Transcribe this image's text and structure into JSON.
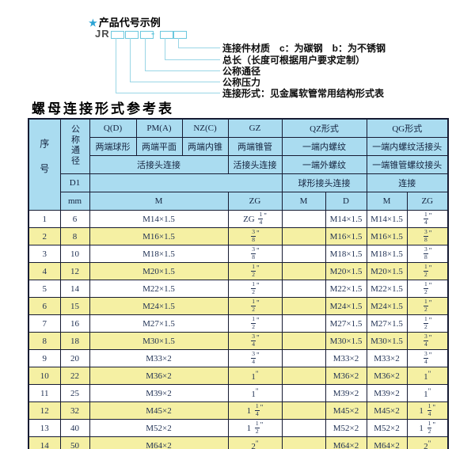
{
  "diagram": {
    "star": "★",
    "title": "产品代号示例",
    "code_prefix": "JR",
    "separator": "-",
    "callouts": [
      "连接件材质　c：为碳钢　b：为不锈钢",
      "总长（长度可根据用户要求定制）",
      "公称通径",
      "公称压力",
      "连接形式：见金属软管常用结构形式表"
    ]
  },
  "table": {
    "title": "螺母连接形式参考表",
    "header": {
      "seq": "序号",
      "dn": "公称通径",
      "d1": "D1",
      "mm": "mm",
      "col_qd": "Q(D)",
      "col_pm": "PM(A)",
      "col_nz": "NZ(C)",
      "col_gz": "GZ",
      "col_qz": "QZ形式",
      "col_qg": "QG形式",
      "qd_desc": "两端球形",
      "pm_desc": "两端平面",
      "nz_desc": "两端内锥",
      "gz_desc": "两端锥管",
      "qz_desc1": "一端内螺纹",
      "qg_desc1": "一端内螺纹活接头",
      "left_conn": "活接头连接",
      "gz_conn": "活接头连接",
      "qz_desc2": "一端外螺纹",
      "qg_desc2": "一端锥管螺纹接头",
      "qz_conn": "球形接头连接",
      "qg_conn": "连接",
      "m_label": "M",
      "zg_label": "ZG",
      "qz_m_label": "M",
      "qz_d_label": "D",
      "qg_m_label": "M",
      "qg_zg_label": "ZG"
    },
    "rows": [
      {
        "seq": "1",
        "dn": "6",
        "m": "M14×1.5",
        "gz": "ZG 1/4\"",
        "qz_m": "",
        "qz_d": "M14×1.5",
        "qg_m": "M14×1.5",
        "qg_zg": "1/4\""
      },
      {
        "seq": "2",
        "dn": "8",
        "m": "M16×1.5",
        "gz": "3/8\"",
        "qz_m": "",
        "qz_d": "M16×1.5",
        "qg_m": "M16×1.5",
        "qg_zg": "3/8\""
      },
      {
        "seq": "3",
        "dn": "10",
        "m": "M18×1.5",
        "gz": "3/8\"",
        "qz_m": "",
        "qz_d": "M18×1.5",
        "qg_m": "M18×1.5",
        "qg_zg": "3/8\""
      },
      {
        "seq": "4",
        "dn": "12",
        "m": "M20×1.5",
        "gz": "1/2\"",
        "qz_m": "",
        "qz_d": "M20×1.5",
        "qg_m": "M20×1.5",
        "qg_zg": "1/2\""
      },
      {
        "seq": "5",
        "dn": "14",
        "m": "M22×1.5",
        "gz": "1/2\"",
        "qz_m": "",
        "qz_d": "M22×1.5",
        "qg_m": "M22×1.5",
        "qg_zg": "1/2\""
      },
      {
        "seq": "6",
        "dn": "15",
        "m": "M24×1.5",
        "gz": "1/2\"",
        "qz_m": "",
        "qz_d": "M24×1.5",
        "qg_m": "M24×1.5",
        "qg_zg": "1/2\""
      },
      {
        "seq": "7",
        "dn": "16",
        "m": "M27×1.5",
        "gz": "1/2\"",
        "qz_m": "",
        "qz_d": "M27×1.5",
        "qg_m": "M27×1.5",
        "qg_zg": "1/2\""
      },
      {
        "seq": "8",
        "dn": "18",
        "m": "M30×1.5",
        "gz": "3/4\"",
        "qz_m": "",
        "qz_d": "M30×1.5",
        "qg_m": "M30×1.5",
        "qg_zg": "3/4\""
      },
      {
        "seq": "9",
        "dn": "20",
        "m": "M33×2",
        "gz": "3/4\"",
        "qz_m": "",
        "qz_d": "M33×2",
        "qg_m": "M33×2",
        "qg_zg": "3/4\""
      },
      {
        "seq": "10",
        "dn": "22",
        "m": "M36×2",
        "gz": "1\"",
        "qz_m": "",
        "qz_d": "M36×2",
        "qg_m": "M36×2",
        "qg_zg": "1\""
      },
      {
        "seq": "11",
        "dn": "25",
        "m": "M39×2",
        "gz": "1\"",
        "qz_m": "",
        "qz_d": "M39×2",
        "qg_m": "M39×2",
        "qg_zg": "1\""
      },
      {
        "seq": "12",
        "dn": "32",
        "m": "M45×2",
        "gz": "1 1/4\"",
        "qz_m": "",
        "qz_d": "M45×2",
        "qg_m": "M45×2",
        "qg_zg": "1 1/4\""
      },
      {
        "seq": "13",
        "dn": "40",
        "m": "M52×2",
        "gz": "1 1/2\"",
        "qz_m": "",
        "qz_d": "M52×2",
        "qg_m": "M52×2",
        "qg_zg": "1 1/2\""
      },
      {
        "seq": "14",
        "dn": "50",
        "m": "M64×2",
        "gz": "2\"",
        "qz_m": "",
        "qz_d": "M64×2",
        "qg_m": "M64×2",
        "qg_zg": "2\""
      }
    ]
  },
  "colors": {
    "header_bg": "#aadcf0",
    "alt_row_bg": "#f5f0a3",
    "callout_line": "#9ad6e6",
    "code_box_border": "#6cc8de",
    "table_border": "#161b33",
    "table_text": "#1e2f52",
    "star": "#2ba3d4"
  }
}
